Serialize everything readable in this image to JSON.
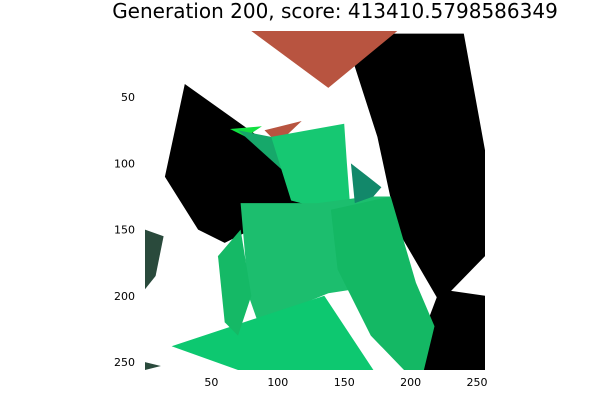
{
  "chart_data": {
    "type": "image",
    "title": "Generation 200, score: 413410.5798586349",
    "xlabel": "",
    "ylabel": "",
    "xlim": [
      0,
      256
    ],
    "ylim": [
      256,
      0
    ],
    "y_axis_inverted": true,
    "grid": false,
    "legend": "none",
    "x_ticks": [
      {
        "value": 50,
        "label": "50"
      },
      {
        "value": 100,
        "label": "100"
      },
      {
        "value": 150,
        "label": "150"
      },
      {
        "value": 200,
        "label": "200"
      },
      {
        "value": 250,
        "label": "250"
      }
    ],
    "y_ticks": [
      {
        "value": 50,
        "label": "50"
      },
      {
        "value": 100,
        "label": "100"
      },
      {
        "value": 150,
        "label": "150"
      },
      {
        "value": 200,
        "label": "200"
      },
      {
        "value": 250,
        "label": "250"
      }
    ],
    "background_color": "#ffffff",
    "polygons": [
      {
        "id": "black-mass-right",
        "color": "#000000",
        "points": [
          [
            150,
            2
          ],
          [
            240,
            2
          ],
          [
            256,
            90
          ],
          [
            256,
            170
          ],
          [
            222,
            205
          ],
          [
            190,
            150
          ],
          [
            175,
            80
          ]
        ]
      },
      {
        "id": "black-mass-center",
        "color": "#000000",
        "points": [
          [
            30,
            40
          ],
          [
            100,
            90
          ],
          [
            130,
            120
          ],
          [
            120,
            135
          ],
          [
            100,
            140
          ],
          [
            60,
            160
          ],
          [
            40,
            150
          ],
          [
            15,
            110
          ]
        ]
      },
      {
        "id": "black-bottom-right",
        "color": "#000000",
        "points": [
          [
            222,
            195
          ],
          [
            256,
            200
          ],
          [
            256,
            256
          ],
          [
            200,
            256
          ],
          [
            205,
            240
          ]
        ]
      },
      {
        "id": "dark-green-left-edge",
        "color": "#2a4a3c",
        "points": [
          [
            0,
            150
          ],
          [
            14,
            155
          ],
          [
            8,
            185
          ],
          [
            0,
            195
          ]
        ]
      },
      {
        "id": "dark-green-bottom-left",
        "color": "#2a4a3c",
        "points": [
          [
            0,
            250
          ],
          [
            12,
            253
          ],
          [
            0,
            256
          ]
        ]
      },
      {
        "id": "red-triangle-top",
        "color": "#b85440",
        "points": [
          [
            80,
            0
          ],
          [
            190,
            0
          ],
          [
            138,
            43
          ]
        ]
      },
      {
        "id": "red-sliver",
        "color": "#b85440",
        "points": [
          [
            90,
            75
          ],
          [
            118,
            68
          ],
          [
            100,
            85
          ]
        ]
      },
      {
        "id": "bright-green-sliver",
        "color": "#10e040",
        "points": [
          [
            64,
            74
          ],
          [
            88,
            72
          ],
          [
            76,
            80
          ]
        ]
      },
      {
        "id": "teal-streak",
        "color": "#16a86a",
        "points": [
          [
            70,
            75
          ],
          [
            95,
            80
          ],
          [
            155,
            140
          ],
          [
            140,
            138
          ]
        ]
      },
      {
        "id": "olive-sliver",
        "color": "#9ab020",
        "points": [
          [
            55,
            170
          ],
          [
            60,
            166
          ],
          [
            58,
            185
          ]
        ]
      },
      {
        "id": "green-fan-upper",
        "color": "#16c872",
        "points": [
          [
            95,
            80
          ],
          [
            150,
            70
          ],
          [
            152,
            100
          ],
          [
            155,
            140
          ],
          [
            110,
            128
          ]
        ]
      },
      {
        "id": "green-body-main",
        "color": "#1cbe6e",
        "points": [
          [
            72,
            130
          ],
          [
            130,
            130
          ],
          [
            168,
            125
          ],
          [
            185,
            125
          ],
          [
            190,
            190
          ],
          [
            138,
            198
          ],
          [
            85,
            220
          ],
          [
            78,
            200
          ]
        ]
      },
      {
        "id": "dark-teal-patch",
        "color": "#12886a",
        "points": [
          [
            155,
            100
          ],
          [
            168,
            110
          ],
          [
            178,
            118
          ],
          [
            172,
            125
          ],
          [
            158,
            130
          ]
        ]
      },
      {
        "id": "green-right-slab",
        "color": "#14b864",
        "points": [
          [
            140,
            135
          ],
          [
            185,
            125
          ],
          [
            204,
            190
          ],
          [
            218,
            223
          ],
          [
            210,
            256
          ],
          [
            195,
            256
          ],
          [
            170,
            230
          ],
          [
            145,
            180
          ]
        ]
      },
      {
        "id": "green-big-triangle",
        "color": "#0dc870",
        "points": [
          [
            20,
            238
          ],
          [
            135,
            200
          ],
          [
            172,
            256
          ],
          [
            70,
            256
          ]
        ]
      },
      {
        "id": "green-lower-wedge",
        "color": "#15b966",
        "points": [
          [
            55,
            170
          ],
          [
            72,
            150
          ],
          [
            80,
            200
          ],
          [
            70,
            230
          ],
          [
            60,
            220
          ]
        ]
      }
    ]
  }
}
